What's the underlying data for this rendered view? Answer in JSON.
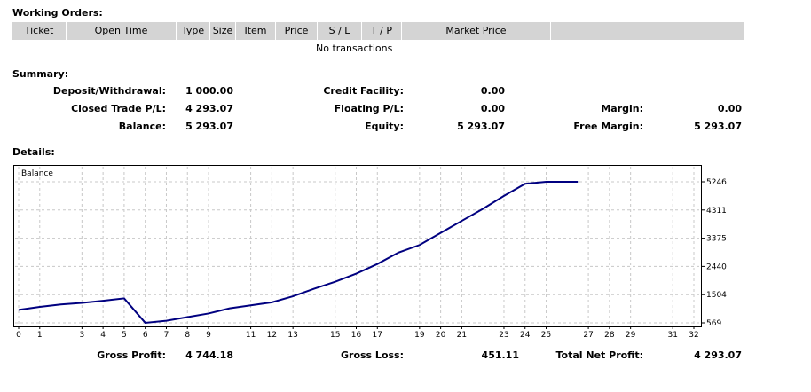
{
  "working_orders": {
    "title": "Working Orders:",
    "columns": [
      "Ticket",
      "Open Time",
      "Type",
      "Size",
      "Item",
      "Price",
      "S / L",
      "T / P",
      "Market Price",
      ""
    ],
    "empty_text": "No transactions"
  },
  "summary": {
    "title": "Summary:",
    "deposit_label": "Deposit/Withdrawal:",
    "deposit_value": "1 000.00",
    "closed_pl_label": "Closed Trade P/L:",
    "closed_pl_value": "4 293.07",
    "balance_label": "Balance:",
    "balance_value": "5 293.07",
    "credit_label": "Credit Facility:",
    "credit_value": "0.00",
    "floating_label": "Floating P/L:",
    "floating_value": "0.00",
    "equity_label": "Equity:",
    "equity_value": "5 293.07",
    "margin_label": "Margin:",
    "margin_value": "0.00",
    "free_margin_label": "Free Margin:",
    "free_margin_value": "5 293.07"
  },
  "details": {
    "title": "Details:",
    "gross_profit_label": "Gross Profit:",
    "gross_profit_value": "4 744.18",
    "gross_loss_label": "Gross Loss:",
    "gross_loss_value": "451.11",
    "total_net_label": "Total Net Profit:",
    "total_net_value": "4 293.07"
  },
  "chart_data": {
    "type": "line",
    "title": "Balance",
    "line_color": "#000080",
    "grid": true,
    "xlim": [
      0,
      32
    ],
    "ylim": [
      569,
      5246
    ],
    "x_ticks": [
      0,
      1,
      3,
      4,
      5,
      6,
      7,
      8,
      9,
      11,
      12,
      13,
      15,
      16,
      17,
      19,
      20,
      21,
      23,
      24,
      25,
      27,
      28,
      29,
      31,
      32
    ],
    "x_tick_labels": [
      "0",
      "1",
      "3",
      "4",
      "5",
      "6",
      "7",
      "8",
      "9",
      "11",
      "12",
      "13",
      "15",
      "16",
      "17",
      "19",
      "20",
      "21",
      "23",
      "24",
      "25",
      "27",
      "28",
      "29",
      "31",
      "32"
    ],
    "y_ticks": [
      5246,
      4311,
      3375,
      2440,
      1504,
      569
    ],
    "y_tick_labels": [
      "5246",
      "4311",
      "3375",
      "2440",
      "1504",
      "569"
    ],
    "series": [
      {
        "x": [
          0,
          1,
          2,
          3,
          4,
          5,
          6,
          7,
          8,
          9,
          10,
          11,
          12,
          13,
          14,
          15,
          16,
          17,
          18,
          19,
          20,
          21,
          22,
          23,
          24,
          25,
          26,
          26.5
        ],
        "y": [
          1000,
          1100,
          1180,
          1230,
          1300,
          1380,
          570,
          640,
          760,
          880,
          1050,
          1150,
          1250,
          1450,
          1700,
          1930,
          2200,
          2520,
          2900,
          3150,
          3550,
          3950,
          4350,
          4780,
          5180,
          5246,
          5246,
          5246
        ]
      }
    ]
  }
}
